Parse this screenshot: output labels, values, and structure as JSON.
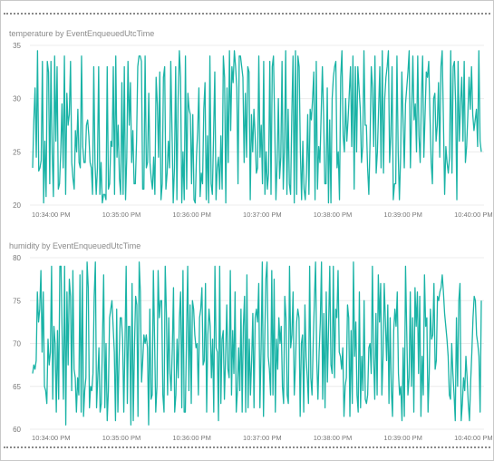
{
  "charts": [
    {
      "title": "temperature by EventEnqueuedUtcTime",
      "xlabel": "",
      "ylabel": ""
    },
    {
      "title": "humidity by EventEnqueuedUtcTime",
      "xlabel": "",
      "ylabel": ""
    }
  ],
  "colors": {
    "series": "#1ab3a6",
    "grid": "#ececec",
    "tick_text": "#777777",
    "title_text": "#8a8a8a",
    "dotted_border": "#8a8a8a"
  },
  "chart_data": [
    {
      "type": "line",
      "title": "temperature by EventEnqueuedUtcTime",
      "xlabel": "",
      "ylabel": "",
      "ylim": [
        20,
        35
      ],
      "yticks": [
        20,
        25,
        30,
        35
      ],
      "xticks": [
        "10:34:00 PM",
        "10:35:00 PM",
        "10:36:00 PM",
        "10:37:00 PM",
        "10:38:00 PM",
        "10:39:00 PM",
        "10:40:00 PM"
      ],
      "xrange_minutes": [
        -0.3,
        6.15
      ],
      "grid": true,
      "legend": "none",
      "series": [
        {
          "values": [
            23.5,
            28,
            31,
            24.5,
            34.5,
            23.2,
            23.5,
            24.2,
            33.5,
            20.2,
            26,
            20.8,
            33.5,
            32.5,
            22,
            33.5,
            24.8,
            20.8,
            34,
            26,
            33,
            21.5,
            22,
            25,
            29.5,
            23.5,
            34,
            21,
            30.5,
            27.5,
            28.5,
            33.5,
            24,
            22.5,
            21.5,
            27,
            25,
            29,
            24,
            23.5,
            34,
            25.5,
            24,
            24,
            27.5,
            28,
            26.5,
            24,
            23.5,
            21,
            33,
            24,
            21,
            23.5,
            33,
            21,
            24,
            20.2,
            21,
            21,
            20.5,
            33,
            21.5,
            22,
            26,
            25.5,
            33,
            21,
            34,
            24.5,
            27.5,
            22.5,
            21,
            31.5,
            21,
            33,
            20.5,
            24.5,
            33.5,
            27.5,
            31.5,
            24,
            27,
            22,
            22,
            26,
            33,
            34,
            34,
            33.5,
            21.5,
            21.5,
            34,
            23.5,
            24,
            30.5,
            24,
            22.5,
            21.5,
            24.5,
            21,
            32,
            29.5,
            24.5,
            32.5,
            20.5,
            22,
            32,
            33,
            21.5,
            23,
            26,
            23.5,
            33.5,
            27,
            20.2,
            23.5,
            33,
            20.5,
            30,
            34.5,
            32,
            20.2,
            25,
            20.5,
            34,
            21.5,
            30.5,
            29,
            28.5,
            22,
            28.5,
            20.5,
            20.2,
            24.5,
            27,
            31,
            20.8,
            23,
            22,
            29,
            31.5,
            20.5,
            26.5,
            20.2,
            34,
            22,
            21,
            26.5,
            32.5,
            20.5,
            23.5,
            24.5,
            21.5,
            26.5,
            21.5,
            34,
            32,
            20.2,
            31,
            24,
            34.5,
            27,
            33,
            31.5,
            34.5,
            33,
            31,
            22,
            34,
            34,
            33,
            32,
            24,
            30.5,
            24.5,
            33,
            32.5,
            20.5,
            28.5,
            25,
            29,
            26.5,
            23,
            23.5,
            34,
            24.5,
            27.5,
            22,
            33.5,
            21,
            25,
            21.5,
            23,
            33.5,
            21,
            33,
            34,
            27.5,
            20.5,
            24,
            30,
            22.5,
            24.5,
            33.5,
            21.5,
            25.5,
            34.5,
            21,
            29,
            22,
            21,
            28.5,
            34,
            20.2,
            34.5,
            21,
            34,
            33,
            25,
            20.5,
            26,
            21.5,
            20.5,
            23,
            28.5,
            21,
            29,
            28,
            30,
            32.5,
            20.5,
            33.5,
            21.5,
            25.5,
            24,
            28.5,
            33,
            28.5,
            22,
            22,
            31,
            20.2,
            28,
            20.2,
            30,
            32,
            33,
            33.5,
            23.5,
            25,
            20.5,
            32,
            34.5,
            26.5,
            25,
            30,
            26,
            28,
            30.5,
            33,
            25.5,
            34,
            21.5,
            33,
            25,
            33,
            31,
            29,
            24,
            25.5,
            34.5,
            27.5,
            27.5,
            23.5,
            21,
            26,
            33,
            31,
            25.5,
            34,
            23,
            25,
            29,
            33,
            23.5,
            34.5,
            23,
            30,
            32,
            33,
            34.5,
            24,
            26.5,
            33,
            20.5,
            22,
            22,
            34,
            25,
            20.5,
            24.5,
            32.5,
            28,
            23.5,
            29.5,
            31,
            32.5,
            34.5,
            23.5,
            28.5,
            34,
            28,
            29.5,
            25,
            34,
            26.5,
            24,
            30,
            34,
            24.5,
            28.5,
            32.5,
            32,
            33.5,
            28.5,
            24,
            22,
            30,
            30.5,
            26,
            27.5,
            31.5,
            24.5,
            33,
            34.5,
            28,
            21,
            25.5,
            24,
            23,
            24.5,
            34.5,
            23,
            33,
            33.5,
            29.5,
            20.5,
            33.5,
            26,
            29.5,
            32,
            26,
            33.5,
            24,
            25.5,
            28.5,
            32,
            29,
            33,
            28.5,
            27,
            28,
            29,
            25.5,
            34.5,
            26,
            25
          ]
        }
      ]
    },
    {
      "type": "line",
      "title": "humidity by EventEnqueuedUtcTime",
      "xlabel": "",
      "ylabel": "",
      "ylim": [
        60,
        80
      ],
      "yticks": [
        60,
        65,
        70,
        75,
        80
      ],
      "xticks": [
        "10:34:00 PM",
        "10:35:00 PM",
        "10:36:00 PM",
        "10:37:00 PM",
        "10:38:00 PM",
        "10:39:00 PM",
        "10:40:00 PM"
      ],
      "xrange_minutes": [
        -0.3,
        6.15
      ],
      "grid": true,
      "legend": "none",
      "series": [
        {
          "values": [
            66.5,
            67.5,
            67,
            68,
            76,
            72.5,
            74,
            78.5,
            69,
            76,
            65,
            64.5,
            63,
            70.5,
            67.5,
            69,
            79,
            63.5,
            72,
            70,
            62,
            71.5,
            63.5,
            79,
            79,
            70.5,
            63.5,
            79,
            60.5,
            76,
            67.5,
            77.5,
            75.5,
            64.5,
            78.5,
            67,
            66,
            62,
            66,
            64,
            78,
            62,
            78.5,
            61.5,
            64.5,
            66,
            79.5,
            76.5,
            62.5,
            65,
            64.5,
            66.5,
            75.5,
            79.5,
            62.5,
            66,
            69.5,
            62,
            63,
            70.5,
            78,
            62.5,
            70,
            61,
            64.5,
            73,
            74,
            75,
            72,
            69,
            61,
            74,
            62,
            68,
            73,
            73,
            70.5,
            62,
            70,
            79,
            63,
            72,
            72,
            60.5,
            77,
            61,
            69.5,
            75.5,
            74.5,
            61.5,
            79.5,
            76,
            65.5,
            68,
            71,
            70,
            71,
            69.5,
            60.5,
            74,
            63.5,
            64,
            78.5,
            70.5,
            62,
            65,
            78.5,
            73,
            75,
            75,
            64,
            62,
            79,
            73.5,
            64,
            73,
            66.5,
            64.5,
            69.5,
            76.5,
            62,
            64,
            70.5,
            66,
            73,
            76,
            62.5,
            78.5,
            62,
            62,
            71,
            79,
            64.5,
            74.5,
            63,
            75,
            74,
            71,
            69.5,
            70,
            64,
            73,
            74,
            76.5,
            67.5,
            68,
            77,
            62,
            71,
            74,
            72,
            66,
            70.5,
            62,
            79,
            69.5,
            69,
            61,
            79,
            63,
            70.5,
            71.5,
            63.5,
            68.5,
            74.5,
            67,
            66,
            78.5,
            64,
            71.5,
            66.5,
            76,
            62,
            64.5,
            69.5,
            64.5,
            74,
            62,
            72,
            75.5,
            62,
            78,
            62.5,
            70.5,
            64,
            68,
            73.5,
            62.5,
            73,
            74,
            72.5,
            77,
            62.5,
            69.5,
            79.5,
            61.5,
            70,
            77.5,
            79.5,
            68.5,
            67,
            64,
            78.5,
            64,
            77.5,
            62,
            70.5,
            67,
            73,
            70,
            72,
            65,
            63,
            75.5,
            73,
            64,
            63,
            79,
            69.5,
            71,
            76,
            64,
            67.5,
            72.5,
            74,
            73,
            61.5,
            70,
            71,
            62,
            74.5,
            68.5,
            66,
            63,
            79,
            66,
            64,
            70,
            75,
            79.5,
            68,
            63.5,
            69,
            72.5,
            79.5,
            63.5,
            73.5,
            62.5,
            76,
            65.5,
            72,
            79,
            67.5,
            66.5,
            79,
            66,
            74,
            73,
            78.5,
            69,
            68.5,
            67,
            69.5,
            61.5,
            65,
            66,
            74.5,
            73,
            61.5,
            71.5,
            63,
            79.5,
            68.5,
            72.5,
            64,
            62,
            76,
            62.5,
            68.5,
            64.5,
            75,
            63.5,
            63,
            64,
            69.5,
            70,
            66.5,
            79,
            68.5,
            63.5,
            73.5,
            64,
            78,
            72.5,
            77,
            64,
            68.5,
            77,
            72.5,
            68,
            74.5,
            63,
            73,
            64.5,
            61.5,
            71.5,
            74,
            72,
            76,
            66.5,
            64,
            65,
            61,
            69.5,
            61.5,
            79,
            71.5,
            64,
            66,
            76,
            65,
            73,
            62,
            76.5,
            72,
            76,
            66.5,
            75.5,
            61.5,
            68.5,
            64,
            78,
            72,
            73,
            62,
            66.5,
            74,
            70.5,
            71,
            77,
            67,
            68,
            75.5,
            75,
            76,
            76.5,
            78,
            76,
            73.5,
            72,
            70.5,
            68.5,
            64,
            63.5,
            70,
            66.5,
            64,
            61,
            73,
            65,
            75,
            77,
            61,
            63,
            66,
            64.5,
            68.5,
            66,
            63,
            61,
            65.5,
            69,
            73,
            75.5,
            75,
            71,
            70,
            68.5,
            62,
            75
          ]
        }
      ]
    }
  ]
}
